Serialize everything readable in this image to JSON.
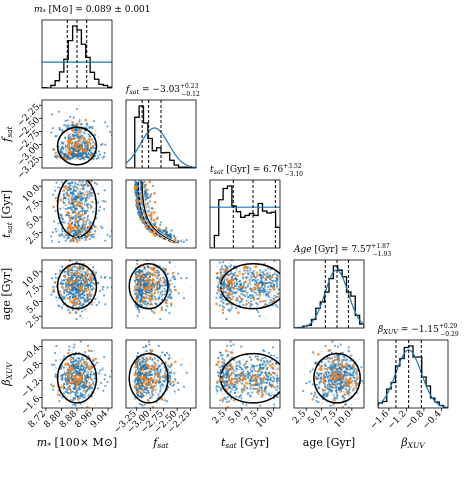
{
  "chart_data": {
    "type": "corner",
    "colors": {
      "samples": "#1f77b4",
      "points": "#ff7f0e",
      "hist": "#000000",
      "prior": "#1f77b4",
      "scatter_gray": "#777777"
    },
    "parameters": [
      {
        "key": "mstar",
        "label_main": "m",
        "label_sub": "*",
        "label_unit": "[100× M⊙]",
        "title": "m* [M⊙] = 0.089 ± 0.001",
        "range": [
          8.7,
          9.06
        ],
        "median": 8.88,
        "q16": 8.83,
        "q84": 8.93,
        "sigma": 0.05,
        "ticks": [
          8.72,
          8.8,
          8.88,
          8.96,
          9.04
        ],
        "tick_labels": [
          "8.72",
          "8.80",
          "8.88",
          "8.96",
          "9.04"
        ],
        "prior": "flat"
      },
      {
        "key": "fsat",
        "label_main": "f",
        "label_sub": "sat",
        "label_unit": "",
        "title": "fsat = −3.03 +0.23 −0.12",
        "range": [
          -3.45,
          -2.15
        ],
        "median": -3.03,
        "q16": -3.15,
        "q84": -2.8,
        "sigma": 0.18,
        "ticks": [
          -3.25,
          -3.0,
          -2.75,
          -2.5,
          -2.25
        ],
        "tick_labels": [
          "−3.25",
          "−3.00",
          "−2.75",
          "−2.50",
          "−2.25"
        ],
        "prior": "gaussian",
        "prior_mu": -2.92,
        "prior_sd": 0.26
      },
      {
        "key": "tsat",
        "label_main": "t",
        "label_sub": "sat",
        "label_unit": "[Gyr]",
        "title": "tsat [Gyr] = 6.76 +3.52 −3.10",
        "range": [
          0.0,
          11.0
        ],
        "median": 6.76,
        "q16": 3.66,
        "q84": 10.28,
        "sigma": 3.0,
        "ticks": [
          2.5,
          5.0,
          7.5,
          10.0
        ],
        "tick_labels": [
          "2.5",
          "5.0",
          "7.5",
          "10.0"
        ],
        "prior": "flat"
      },
      {
        "key": "age",
        "label_main": "age",
        "label_sub": "",
        "label_unit": "[Gyr]",
        "title": "Age [Gyr] = 7.57 +1.87 −1.93",
        "range": [
          0.5,
          12.0
        ],
        "median": 7.57,
        "q16": 5.64,
        "q84": 9.44,
        "sigma": 1.9,
        "ticks": [
          2.5,
          5.0,
          7.5,
          10.0
        ],
        "tick_labels": [
          "2.5",
          "5.0",
          "7.5",
          "10.0"
        ],
        "prior": "gaussian",
        "prior_mu": 7.5,
        "prior_sd": 1.9
      },
      {
        "key": "bxuv",
        "label_main": "β",
        "label_sub": "XUV",
        "label_unit": "",
        "title": "βXUV = −1.15 +0.29 −0.29",
        "range": [
          -1.85,
          -0.25
        ],
        "median": -1.15,
        "q16": -1.44,
        "q84": -0.86,
        "sigma": 0.29,
        "ticks": [
          -1.6,
          -1.2,
          -0.8,
          -0.4
        ],
        "tick_labels": [
          "−1.6",
          "−1.2",
          "−0.8",
          "−0.4"
        ],
        "prior": "gaussian",
        "prior_mu": -1.15,
        "prior_sd": 0.29
      }
    ],
    "title_parts": [
      {
        "main": "m",
        "sub": "*",
        "rest": " [M⊙] = 0.089 ± 0.001",
        "sup": "",
        "subv": ""
      },
      {
        "main": "f",
        "sub": "sat",
        "rest": " = −3.03",
        "sup": "+0.23",
        "subv": "−0.12"
      },
      {
        "main": "t",
        "sub": "sat",
        "rest": " [Gyr] = 6.76",
        "sup": "+3.52",
        "subv": "−3.10"
      },
      {
        "main": "Age",
        "sub": "",
        "rest": " [Gyr] = 7.57",
        "sup": "+1.87",
        "subv": "−1.93"
      },
      {
        "main": "β",
        "sub": "XUV",
        "rest": " = −1.15",
        "sup": "+0.29",
        "subv": "−0.29"
      }
    ],
    "xlabels": [
      "m* [100× M⊙]",
      "fsat",
      "tsat [Gyr]",
      "age [Gyr]",
      "βXUV"
    ],
    "ylabels": [
      "fsat",
      "tsat [Gyr]",
      "age [Gyr]",
      "βXUV"
    ],
    "correlations": {
      "fsat|tsat": -0.75
    }
  }
}
